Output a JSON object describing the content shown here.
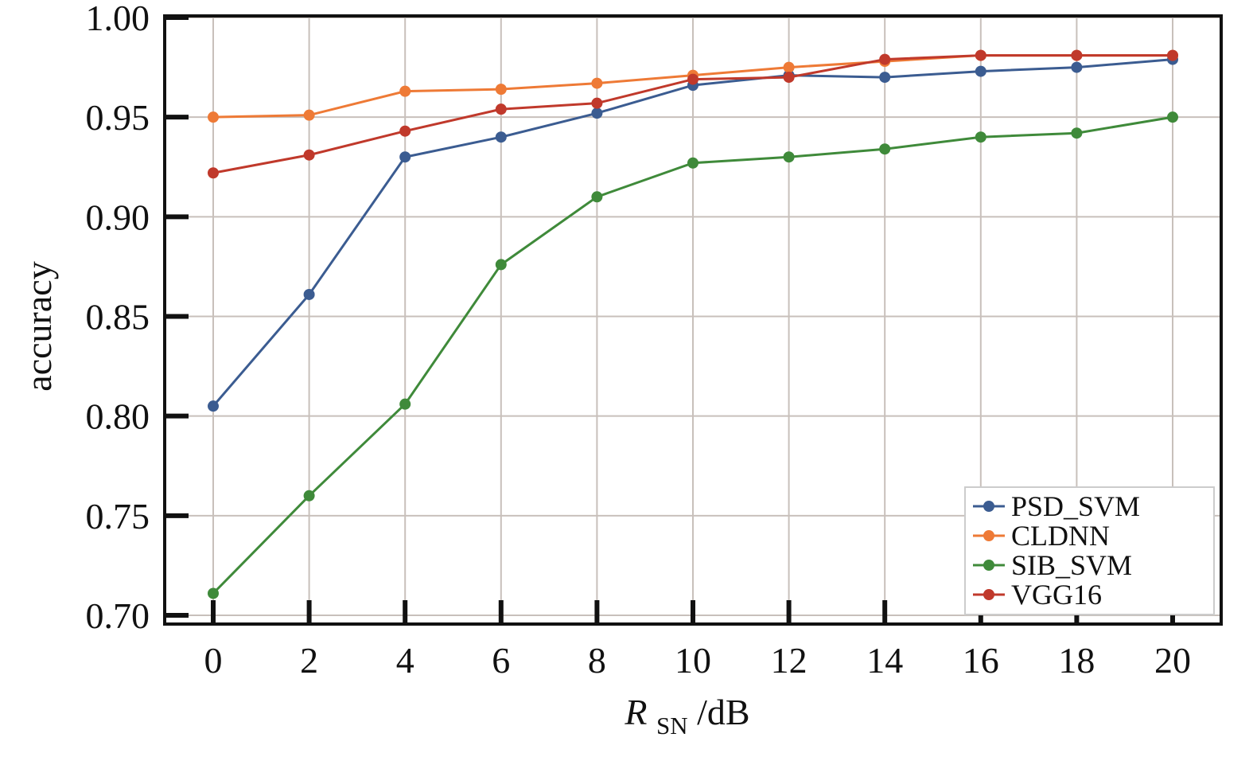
{
  "chart_data": {
    "type": "line",
    "title": "",
    "xlabel": {
      "main": "R",
      "subscript": "SN",
      "suffix": "/dB"
    },
    "ylabel": "accuracy",
    "x": [
      0,
      2,
      4,
      6,
      8,
      10,
      12,
      14,
      16,
      18,
      20
    ],
    "x_ticks": [
      "0",
      "2",
      "4",
      "6",
      "8",
      "10",
      "12",
      "14",
      "16",
      "18",
      "20"
    ],
    "y_ticks": [
      "0.70",
      "0.75",
      "0.80",
      "0.85",
      "0.90",
      "0.95",
      "1.00"
    ],
    "xlim": [
      -2,
      22
    ],
    "ylim": [
      0.7,
      1.0
    ],
    "grid": true,
    "legend_position": "bottom-right",
    "series": [
      {
        "name": "PSD_SVM",
        "color": "#3b5c91",
        "values": [
          0.805,
          0.861,
          0.93,
          0.94,
          0.952,
          0.966,
          0.971,
          0.97,
          0.973,
          0.975,
          0.979
        ]
      },
      {
        "name": "CLDNN",
        "color": "#ee7a36",
        "values": [
          0.95,
          0.951,
          0.963,
          0.964,
          0.967,
          0.971,
          0.975,
          0.978,
          0.981,
          0.981,
          0.981
        ]
      },
      {
        "name": "SIB_SVM",
        "color": "#3f8a3a",
        "values": [
          0.711,
          0.76,
          0.806,
          0.876,
          0.91,
          0.927,
          0.93,
          0.934,
          0.94,
          0.942,
          0.95
        ]
      },
      {
        "name": "VGG16",
        "color": "#c0392b",
        "values": [
          0.922,
          0.931,
          0.943,
          0.954,
          0.957,
          0.969,
          0.97,
          0.979,
          0.981,
          0.981,
          0.981
        ]
      }
    ]
  }
}
